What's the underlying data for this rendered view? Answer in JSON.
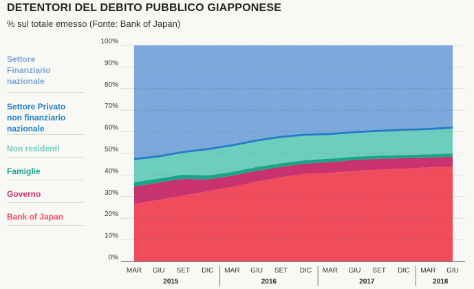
{
  "chart_data": {
    "type": "area",
    "title": "DETENTORI DEL DEBITO PUBBLICO GIAPPONESE",
    "subtitle": "% sul totale emesso (Fonte: Bank of Japan)",
    "ylim": [
      0,
      100
    ],
    "yticks": [
      "0%",
      "10%",
      "20%",
      "30%",
      "40%",
      "50%",
      "60%",
      "70%",
      "80%",
      "90%",
      "100%"
    ],
    "ytick_values": [
      0,
      10,
      20,
      30,
      40,
      50,
      60,
      70,
      80,
      90,
      100
    ],
    "categories": [
      "MAR",
      "GIU",
      "SET",
      "DIC",
      "MAR",
      "GIU",
      "SET",
      "DIC",
      "MAR",
      "GIU",
      "SET",
      "DIC",
      "MAR",
      "GIU"
    ],
    "years": [
      {
        "label": "2015",
        "start": 0,
        "end": 3
      },
      {
        "label": "2016",
        "start": 4,
        "end": 7
      },
      {
        "label": "2017",
        "start": 8,
        "end": 11
      },
      {
        "label": "2018",
        "start": 12,
        "end": 13
      }
    ],
    "series": [
      {
        "name": "Bank of Japan",
        "color": "#f04c5c",
        "values": [
          26.5,
          28.5,
          30.5,
          32.5,
          34.5,
          37.0,
          39.0,
          40.5,
          41.0,
          42.0,
          42.5,
          43.0,
          43.5,
          44.0
        ]
      },
      {
        "name": "Governo",
        "color": "#c8326e",
        "values": [
          8.2,
          8.0,
          7.8,
          5.5,
          5.2,
          5.0,
          4.8,
          4.8,
          5.0,
          5.0,
          5.0,
          4.8,
          4.6,
          4.5
        ]
      },
      {
        "name": "Famiglie",
        "color": "#1aa58a",
        "values": [
          2.0,
          1.9,
          1.9,
          1.8,
          1.8,
          1.7,
          1.7,
          1.6,
          1.6,
          1.5,
          1.5,
          1.5,
          1.5,
          1.4
        ]
      },
      {
        "name": "Non residenti",
        "color": "#6ecebe",
        "values": [
          10.2,
          9.8,
          10.0,
          11.7,
          11.8,
          11.8,
          11.7,
          11.3,
          10.9,
          10.9,
          11.0,
          11.2,
          11.2,
          11.6
        ]
      },
      {
        "name": "Settore Privato non finanziario nazionale",
        "color": "#1f7ec8",
        "values": [
          0.6,
          0.6,
          0.6,
          0.6,
          0.6,
          0.6,
          0.6,
          0.6,
          0.6,
          0.6,
          0.6,
          0.6,
          0.6,
          0.6
        ]
      },
      {
        "name": "Settore Finanziario nazionale",
        "color": "#7ca8dc",
        "values": [
          52.5,
          51.2,
          49.2,
          47.9,
          46.1,
          43.9,
          42.2,
          41.2,
          40.9,
          40.0,
          39.4,
          38.9,
          38.6,
          37.9
        ]
      }
    ]
  },
  "legend": [
    {
      "label": "Settore Finanziario nazionale",
      "lines": [
        "Settore",
        "Finanziario",
        "nazionale"
      ],
      "color": "#7ca8dc"
    },
    {
      "label": "Settore Privato non finanziario nazionale",
      "lines": [
        "Settore Privato",
        "non finanziario",
        "nazionale"
      ],
      "color": "#1f7ec8"
    },
    {
      "label": "Non residenti",
      "lines": [
        "Non residenti"
      ],
      "color": "#6ecebe"
    },
    {
      "label": "Famiglie",
      "lines": [
        "Famiglie"
      ],
      "color": "#1aa58a"
    },
    {
      "label": "Governo",
      "lines": [
        "Governo"
      ],
      "color": "#c8326e"
    },
    {
      "label": "Bank of Japan",
      "lines": [
        "Bank of Japan"
      ],
      "color": "#f04c5c"
    }
  ]
}
